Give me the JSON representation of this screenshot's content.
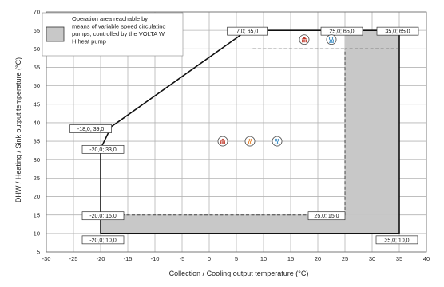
{
  "chart_data": {
    "type": "line",
    "xlabel": "Collection / Cooling output temperature (°C)",
    "ylabel": "DHW / Heating / Sink output temperature (°C)",
    "xlim": [
      -30,
      40
    ],
    "ylim": [
      5,
      70
    ],
    "x_ticks": [
      -30,
      -25,
      -20,
      -15,
      -10,
      -5,
      0,
      5,
      10,
      15,
      20,
      25,
      30,
      35,
      40
    ],
    "y_ticks": [
      5,
      10,
      15,
      20,
      25,
      30,
      35,
      40,
      45,
      50,
      55,
      60,
      65,
      70
    ],
    "grid": true,
    "legend": {
      "position": "top-left",
      "text": "Operation area reachable by means of variable speed circulating pumps, controlled by the VOLTA W H heat pump",
      "lines": [
        "Operation area reachable by",
        "means of variable speed circulating",
        "pumps, controlled by the VOLTA W",
        "H heat pump"
      ],
      "swatch_color": "#c8c8c8"
    },
    "colors": {
      "envelope": "#111111",
      "dashed": "#444444",
      "shaded_area": "#c8c8c8",
      "grid": "#b4b4b4",
      "icon_red": "#c0392b",
      "icon_orange": "#e67e22",
      "icon_blue": "#2e86c1"
    },
    "series": [
      {
        "style": "solid",
        "points": [
          [
            -20,
            10
          ],
          [
            -20,
            33
          ],
          [
            -18,
            39
          ],
          [
            -17,
            40
          ],
          [
            7,
            65
          ],
          [
            35,
            65
          ],
          [
            35,
            10
          ],
          [
            -20,
            10
          ]
        ]
      },
      {
        "style": "dashed",
        "points": [
          [
            -20,
            15
          ],
          [
            25,
            15
          ],
          [
            25,
            60
          ],
          [
            35,
            60
          ]
        ]
      },
      {
        "style": "dashed",
        "points": [
          [
            8,
            60
          ],
          [
            25,
            60
          ]
        ]
      }
    ],
    "shaded_regions": [
      {
        "polygon": [
          [
            -20,
            10
          ],
          [
            35,
            10
          ],
          [
            35,
            15
          ],
          [
            -20,
            15
          ]
        ]
      },
      {
        "polygon": [
          [
            25,
            15
          ],
          [
            35,
            15
          ],
          [
            35,
            65
          ],
          [
            25,
            65
          ]
        ]
      }
    ],
    "annotations": [
      {
        "text": "7,0; 65,0",
        "x": 7,
        "y": 65
      },
      {
        "text": "25,0; 65,0",
        "x": 25,
        "y": 65
      },
      {
        "text": "35,0; 65,0",
        "x": 35,
        "y": 65
      },
      {
        "text": "-18,0; 39,0",
        "x": -18,
        "y": 39
      },
      {
        "text": "-20,0; 33,0",
        "x": -20,
        "y": 33
      },
      {
        "text": "-20,0; 15,0",
        "x": -20,
        "y": 15
      },
      {
        "text": "25,0; 15,0",
        "x": 25,
        "y": 15
      },
      {
        "text": "-20,0; 10,0",
        "x": -20,
        "y": 10
      },
      {
        "text": "35,0; 10,0",
        "x": 35,
        "y": 10
      }
    ],
    "icons": [
      {
        "name": "heating-radiator-icon",
        "color": "red",
        "x": 17.5,
        "y": 62.5
      },
      {
        "name": "dhw-icon",
        "color": "blue",
        "x": 22.5,
        "y": 62.5
      },
      {
        "name": "heating-radiator-icon",
        "color": "red",
        "x": 2.5,
        "y": 35
      },
      {
        "name": "floor-heating-icon",
        "color": "orange",
        "x": 7.5,
        "y": 35
      },
      {
        "name": "dhw-icon",
        "color": "blue",
        "x": 12.5,
        "y": 35
      }
    ]
  }
}
